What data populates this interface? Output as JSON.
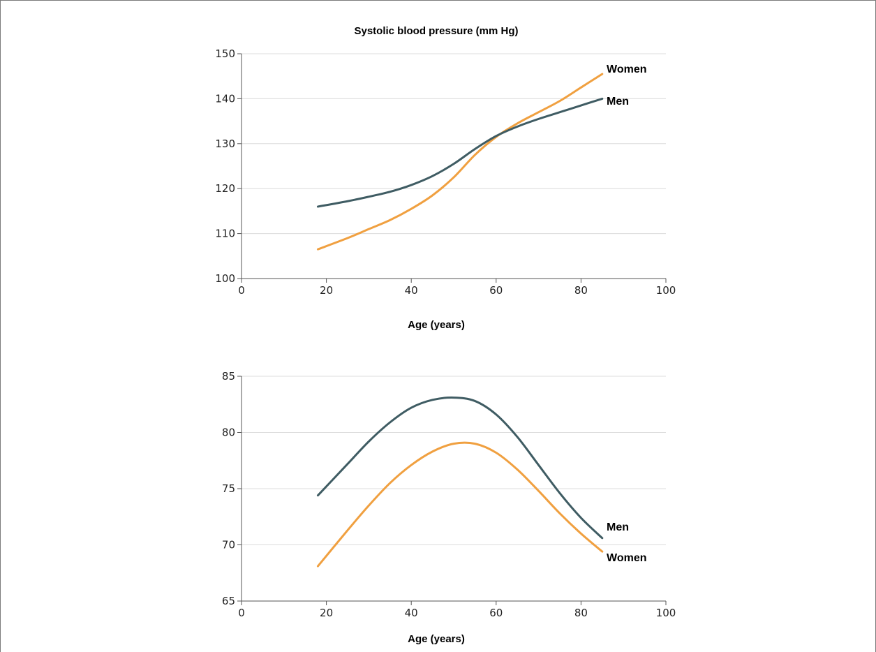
{
  "chart_data": [
    {
      "type": "line",
      "title": "Systolic blood pressure (mm Hg)",
      "xlabel": "Age (years)",
      "ylabel": "",
      "xlim": [
        0,
        100
      ],
      "ylim": [
        100,
        150
      ],
      "xticks": [
        0,
        20,
        40,
        60,
        80,
        100
      ],
      "yticks": [
        100,
        110,
        120,
        130,
        140,
        150
      ],
      "grid": "horizontal",
      "series": [
        {
          "name": "Women",
          "color": "#f0a040",
          "x": [
            18,
            25,
            30,
            35,
            40,
            45,
            50,
            55,
            60,
            65,
            70,
            75,
            80,
            85
          ],
          "y": [
            106.5,
            109.0,
            111.0,
            113.0,
            115.5,
            118.5,
            122.5,
            127.5,
            131.5,
            134.5,
            137.0,
            139.5,
            142.5,
            145.5
          ]
        },
        {
          "name": "Men",
          "color": "#3f5c63",
          "x": [
            18,
            25,
            30,
            35,
            40,
            45,
            50,
            55,
            60,
            65,
            70,
            75,
            80,
            85
          ],
          "y": [
            116.0,
            117.2,
            118.2,
            119.3,
            120.8,
            122.8,
            125.5,
            128.8,
            131.7,
            133.8,
            135.5,
            137.0,
            138.5,
            140.0
          ]
        }
      ]
    },
    {
      "type": "line",
      "title": "",
      "xlabel": "Age (years)",
      "ylabel": "",
      "xlim": [
        0,
        100
      ],
      "ylim": [
        65,
        85
      ],
      "xticks": [
        0,
        20,
        40,
        60,
        80,
        100
      ],
      "yticks": [
        65,
        70,
        75,
        80,
        85
      ],
      "grid": "horizontal",
      "series": [
        {
          "name": "Men",
          "color": "#3f5c63",
          "x": [
            18,
            25,
            30,
            35,
            40,
            45,
            50,
            55,
            60,
            65,
            70,
            75,
            80,
            85
          ],
          "y": [
            74.4,
            77.2,
            79.2,
            80.9,
            82.2,
            82.9,
            83.1,
            82.8,
            81.6,
            79.6,
            77.1,
            74.6,
            72.4,
            70.6
          ]
        },
        {
          "name": "Women",
          "color": "#f0a040",
          "x": [
            18,
            25,
            30,
            35,
            40,
            45,
            50,
            55,
            60,
            65,
            70,
            75,
            80,
            85
          ],
          "y": [
            68.1,
            71.3,
            73.5,
            75.5,
            77.1,
            78.3,
            79.0,
            79.0,
            78.2,
            76.7,
            74.8,
            72.8,
            71.0,
            69.4
          ]
        }
      ]
    }
  ]
}
